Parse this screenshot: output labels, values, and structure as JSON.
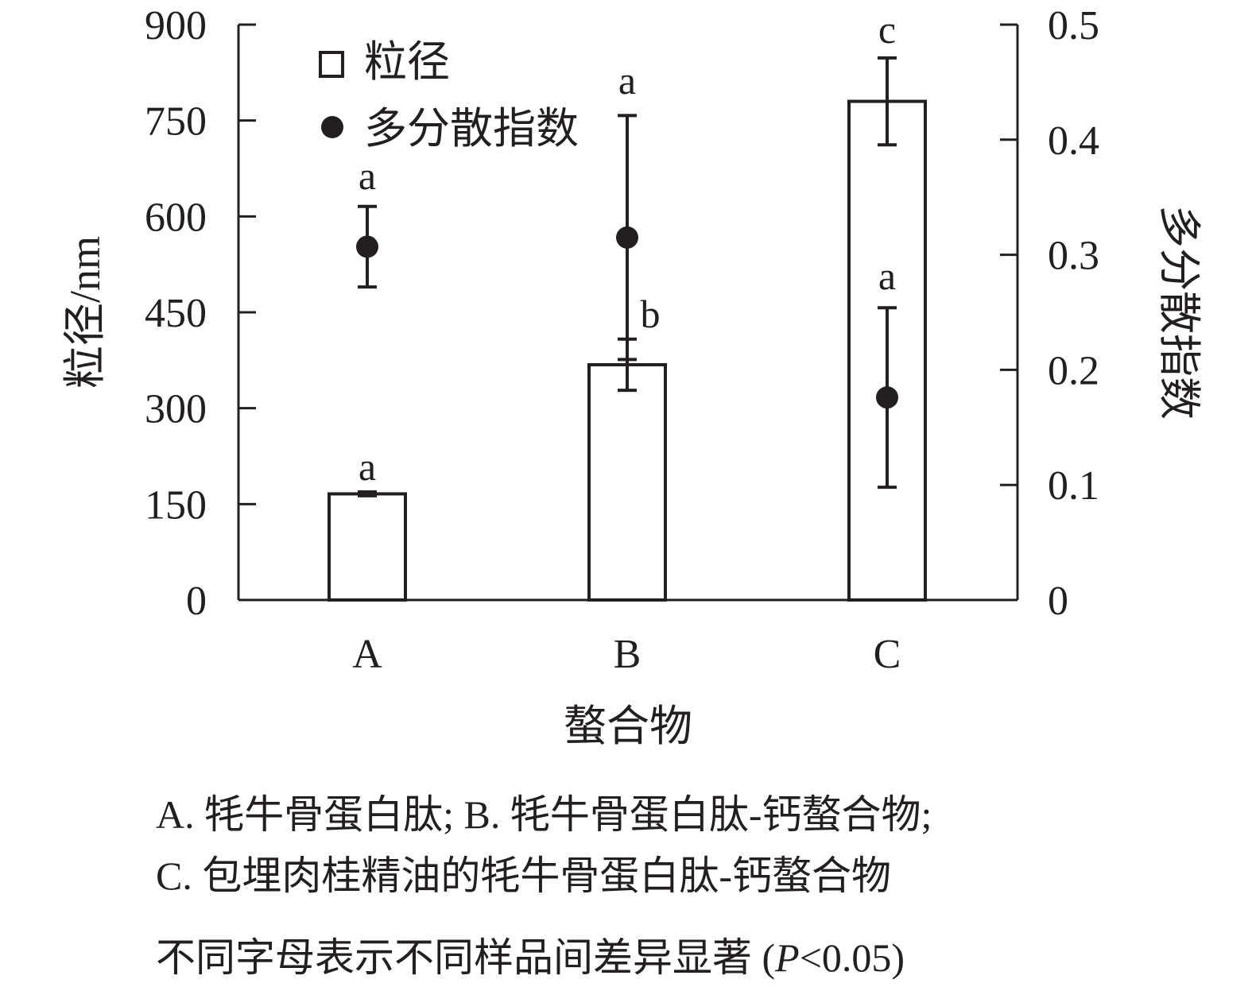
{
  "chart_data": {
    "type": "bar",
    "categories": [
      "A",
      "B",
      "C"
    ],
    "xlabel": "螯合物",
    "ylabel_left": "粒径/nm",
    "ylabel_right": "多分散指数",
    "ylim_left": [
      0,
      900
    ],
    "ylim_right": [
      0,
      0.5
    ],
    "yticks_left": [
      "0",
      "150",
      "300",
      "450",
      "600",
      "750",
      "900"
    ],
    "yticks_right": [
      "0",
      "0.1",
      "0.2",
      "0.3",
      "0.4",
      "0.5"
    ],
    "series": [
      {
        "name": "粒径",
        "kind": "bar",
        "axis": "left",
        "values": [
          166,
          368,
          780
        ],
        "errors": [
          3,
          40,
          68
        ],
        "significance": [
          "a",
          "b",
          "c"
        ]
      },
      {
        "name": "多分散指数",
        "kind": "point",
        "axis": "right",
        "values": [
          0.307,
          0.315,
          0.176
        ],
        "errors": [
          0.035,
          0.106,
          0.078
        ],
        "significance": [
          "a",
          "a",
          "a"
        ]
      }
    ],
    "legend_position": "top-left",
    "grid": false
  },
  "caption": {
    "line1": "A. 牦牛骨蛋白肽; B. 牦牛骨蛋白肽-钙螯合物;",
    "line2": "C.  包埋肉桂精油的牦牛骨蛋白肽-钙螯合物",
    "line3_prefix": "不同字母表示不同样品间差异显著 (",
    "line3_italic": "P",
    "line3_suffix": "<0.05)"
  },
  "colors": {
    "ink": "#231f20",
    "bar_fill": "#ffffff",
    "point_fill": "#231f20"
  }
}
